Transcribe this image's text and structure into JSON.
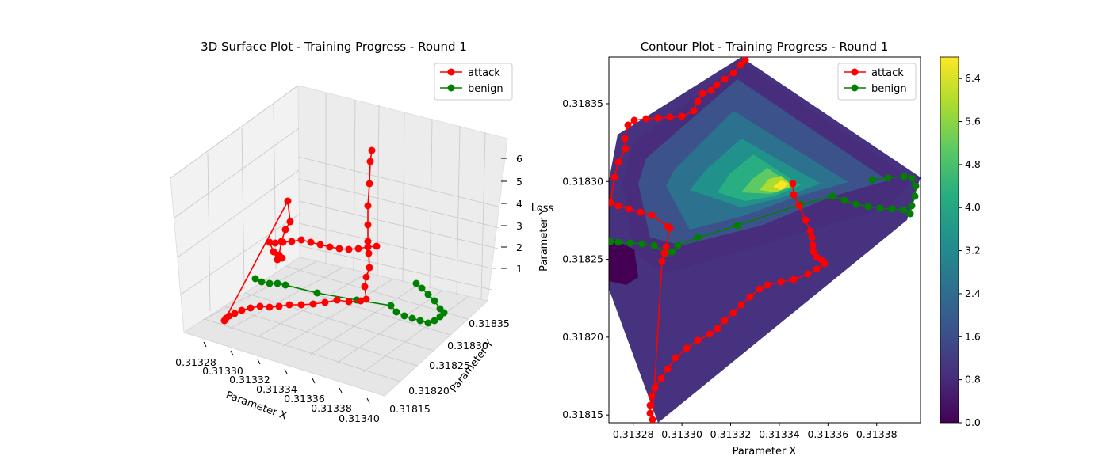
{
  "chart_data": [
    {
      "type": "line3d",
      "title": "3D Surface Plot - Training Progress - Round 1",
      "xlabel": "Parameter X",
      "ylabel": "Parameter Y",
      "zlabel": "Loss",
      "x_ticks": [
        "0.31328",
        "0.31330",
        "0.31332",
        "0.31334",
        "0.31336",
        "0.31338",
        "0.31340"
      ],
      "y_ticks": [
        "0.31815",
        "0.31820",
        "0.31825",
        "0.31830",
        "0.31835"
      ],
      "z_ticks": [
        "1",
        "2",
        "3",
        "4",
        "5",
        "6"
      ],
      "grid": true,
      "legend_position": "top-right",
      "series": [
        {
          "name": "attack",
          "color": "#ff0000"
        },
        {
          "name": "benign",
          "color": "#008000"
        }
      ]
    },
    {
      "type": "contour",
      "title": "Contour Plot - Training Progress - Round 1",
      "xlabel": "Parameter X",
      "ylabel": "Parameter Y",
      "xlim": [
        0.31327,
        0.313398
      ],
      "ylim": [
        0.318145,
        0.31838
      ],
      "x_ticks": [
        "0.31328",
        "0.31330",
        "0.31332",
        "0.31334",
        "0.31336",
        "0.31338"
      ],
      "y_ticks": [
        "0.31815",
        "0.31820",
        "0.31825",
        "0.31830",
        "0.31835"
      ],
      "colorbar_ticks": [
        "0.0",
        "0.8",
        "1.6",
        "2.4",
        "3.2",
        "4.0",
        "4.8",
        "5.6",
        "6.4"
      ],
      "colorbar_range": [
        0.0,
        6.8
      ],
      "colormap": "viridis",
      "legend_position": "top-right",
      "series": [
        {
          "name": "attack",
          "color": "#ff0000"
        },
        {
          "name": "benign",
          "color": "#008000"
        }
      ]
    }
  ]
}
